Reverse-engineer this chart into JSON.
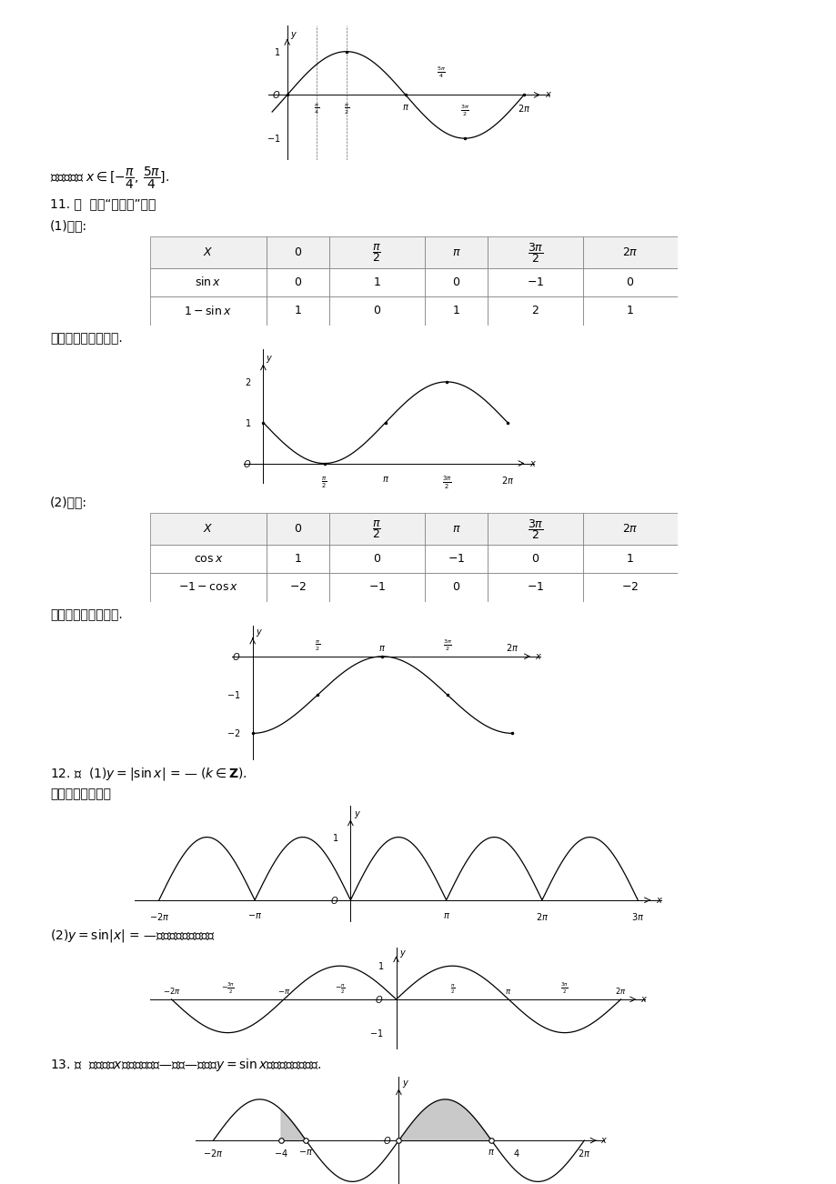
{
  "background_color": "#ffffff",
  "page_width": 9.2,
  "page_height": 13.02,
  "dpi": 100
}
